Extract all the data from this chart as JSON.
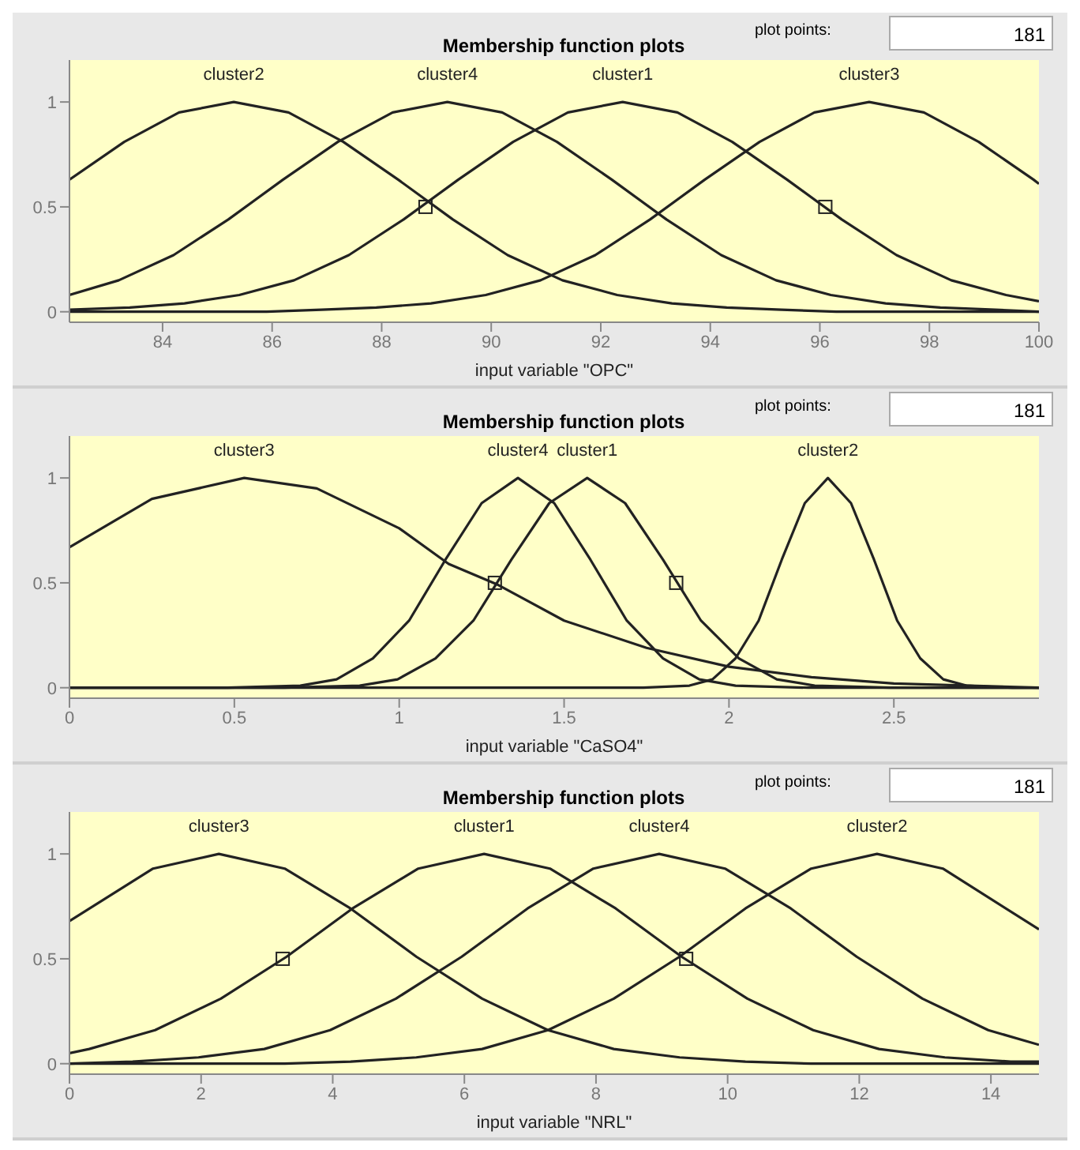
{
  "chart_data": [
    {
      "type": "line",
      "title": "Membership function plots",
      "xlabel": "input variable \"OPC\"",
      "annotations": [
        "plot points:",
        "181"
      ],
      "xlim": [
        82.3,
        100
      ],
      "xticks": [
        84,
        86,
        88,
        90,
        92,
        94,
        96,
        98,
        100
      ],
      "ylim": [
        -0.05,
        1.2
      ],
      "yticks": [
        0,
        0.5,
        1
      ],
      "marker": "none",
      "series": [
        {
          "name": "cluster2",
          "color": "#222222",
          "x": [
            82.3,
            83.3,
            84.3,
            85.3,
            86.3,
            87.3,
            88.3,
            89.3,
            90.3,
            91.3,
            92.3,
            93.3,
            94.3,
            95.3,
            96.3,
            97.3,
            98.3,
            99.3,
            100
          ],
          "values": [
            0.63,
            0.81,
            0.95,
            1,
            0.95,
            0.81,
            0.63,
            0.44,
            0.27,
            0.15,
            0.08,
            0.04,
            0.02,
            0.01,
            0,
            0,
            0,
            0,
            0
          ]
        },
        {
          "name": "cluster4",
          "color": "#222222",
          "x": [
            82.3,
            83.2,
            84.2,
            85.2,
            86.2,
            87.2,
            88.2,
            89.2,
            90.2,
            91.2,
            92.2,
            93.2,
            94.2,
            95.2,
            96.2,
            97.2,
            98.2,
            99.2,
            100
          ],
          "values": [
            0.08,
            0.15,
            0.27,
            0.44,
            0.63,
            0.81,
            0.95,
            1,
            0.95,
            0.81,
            0.63,
            0.44,
            0.27,
            0.15,
            0.08,
            0.04,
            0.02,
            0.01,
            0
          ]
        },
        {
          "name": "cluster1",
          "color": "#222222",
          "x": [
            82.3,
            83.4,
            84.4,
            85.4,
            86.4,
            87.4,
            88.4,
            89.4,
            90.4,
            91.4,
            92.4,
            93.4,
            94.4,
            95.4,
            96.4,
            97.4,
            98.4,
            99.4,
            100
          ],
          "values": [
            0.01,
            0.02,
            0.04,
            0.08,
            0.15,
            0.27,
            0.44,
            0.63,
            0.81,
            0.95,
            1,
            0.95,
            0.81,
            0.63,
            0.44,
            0.27,
            0.15,
            0.08,
            0.05
          ]
        },
        {
          "name": "cluster3",
          "color": "#222222",
          "x": [
            82.3,
            83.9,
            84.9,
            85.9,
            86.9,
            87.9,
            88.9,
            89.9,
            90.9,
            91.9,
            92.9,
            93.9,
            94.9,
            95.9,
            96.9,
            97.9,
            98.9,
            99.9,
            100
          ],
          "values": [
            0,
            0,
            0,
            0,
            0.01,
            0.02,
            0.04,
            0.08,
            0.15,
            0.27,
            0.44,
            0.63,
            0.81,
            0.95,
            1,
            0.95,
            0.81,
            0.63,
            0.61
          ]
        },
        {
          "type": "scatter",
          "marker": "square",
          "color": "#222222",
          "x": [
            88.8,
            96.1
          ],
          "values": [
            0.5,
            0.5
          ]
        }
      ]
    },
    {
      "type": "line",
      "title": "Membership function plots",
      "xlabel": "input variable \"CaSO4\"",
      "annotations": [
        "plot points:",
        "181"
      ],
      "xlim": [
        0,
        2.94
      ],
      "xticks": [
        0,
        0.5,
        1,
        1.5,
        2,
        2.5
      ],
      "ylim": [
        -0.05,
        1.2
      ],
      "yticks": [
        0,
        0.5,
        1
      ],
      "marker": "none",
      "series": [
        {
          "name": "cluster3",
          "color": "#222222",
          "x": [
            0,
            0.25,
            0.53,
            0.75,
            1,
            1.15,
            1.3,
            1.5,
            1.75,
            2,
            2.25,
            2.5,
            2.94
          ],
          "values": [
            0.67,
            0.9,
            1,
            0.95,
            0.76,
            0.59,
            0.49,
            0.32,
            0.19,
            0.1,
            0.05,
            0.02,
            0
          ]
        },
        {
          "name": "cluster4",
          "color": "#222222",
          "x": [
            0,
            0.48,
            0.7,
            0.81,
            0.92,
            1.03,
            1.14,
            1.25,
            1.36,
            1.47,
            1.58,
            1.69,
            1.8,
            1.91,
            2.02,
            2.24,
            2.94
          ],
          "values": [
            0,
            0,
            0.01,
            0.04,
            0.14,
            0.32,
            0.61,
            0.88,
            1,
            0.88,
            0.61,
            0.32,
            0.14,
            0.04,
            0.01,
            0,
            0
          ]
        },
        {
          "name": "cluster1",
          "color": "#222222",
          "x": [
            0,
            0.65,
            0.88,
            0.995,
            1.11,
            1.225,
            1.34,
            1.455,
            1.57,
            1.685,
            1.8,
            1.915,
            2.03,
            2.145,
            2.26,
            2.49,
            2.94
          ],
          "values": [
            0,
            0,
            0.01,
            0.04,
            0.14,
            0.32,
            0.61,
            0.88,
            1,
            0.88,
            0.61,
            0.32,
            0.14,
            0.04,
            0.01,
            0,
            0
          ]
        },
        {
          "name": "cluster2",
          "color": "#222222",
          "x": [
            0,
            1.74,
            1.88,
            1.95,
            2.02,
            2.09,
            2.16,
            2.23,
            2.3,
            2.37,
            2.44,
            2.51,
            2.58,
            2.65,
            2.72,
            2.86,
            2.94
          ],
          "values": [
            0,
            0,
            0.01,
            0.04,
            0.14,
            0.32,
            0.61,
            0.88,
            1,
            0.88,
            0.61,
            0.32,
            0.14,
            0.04,
            0.01,
            0,
            0
          ]
        },
        {
          "type": "scatter",
          "marker": "square",
          "color": "#222222",
          "x": [
            1.29,
            1.84
          ],
          "values": [
            0.5,
            0.5
          ]
        }
      ]
    },
    {
      "type": "line",
      "title": "Membership function plots",
      "xlabel": "input variable \"NRL\"",
      "annotations": [
        "plot points:",
        "181"
      ],
      "xlim": [
        0,
        14.73
      ],
      "xticks": [
        0,
        2,
        4,
        6,
        8,
        10,
        12,
        14
      ],
      "ylim": [
        -0.05,
        1.2
      ],
      "yticks": [
        0,
        0.5,
        1
      ],
      "marker": "none",
      "series": [
        {
          "name": "cluster3",
          "color": "#222222",
          "x": [
            0,
            1.27,
            2.27,
            3.27,
            4.27,
            5.27,
            6.27,
            7.27,
            8.27,
            9.27,
            10.27,
            11.27,
            12.27,
            14.73
          ],
          "values": [
            0.68,
            0.93,
            1,
            0.93,
            0.74,
            0.51,
            0.31,
            0.16,
            0.07,
            0.03,
            0.01,
            0,
            0,
            0
          ]
        },
        {
          "name": "cluster1",
          "color": "#222222",
          "x": [
            0,
            0.3,
            1.3,
            2.3,
            3.3,
            4.3,
            5.3,
            6.3,
            7.3,
            8.3,
            9.3,
            10.3,
            11.3,
            12.3,
            13.3,
            14.3,
            14.73
          ],
          "values": [
            0.05,
            0.07,
            0.16,
            0.31,
            0.51,
            0.74,
            0.93,
            1,
            0.93,
            0.74,
            0.51,
            0.31,
            0.16,
            0.07,
            0.03,
            0.01,
            0.01
          ]
        },
        {
          "name": "cluster4",
          "color": "#222222",
          "x": [
            0,
            0.96,
            1.96,
            2.96,
            3.96,
            4.96,
            5.96,
            6.96,
            7.96,
            8.96,
            9.96,
            10.96,
            11.96,
            12.96,
            13.96,
            14.73
          ],
          "values": [
            0,
            0.01,
            0.03,
            0.07,
            0.16,
            0.31,
            0.51,
            0.74,
            0.93,
            1,
            0.93,
            0.74,
            0.51,
            0.31,
            0.16,
            0.09
          ]
        },
        {
          "name": "cluster2",
          "color": "#222222",
          "x": [
            0,
            3.27,
            4.27,
            5.27,
            6.27,
            7.27,
            8.27,
            9.27,
            10.27,
            11.27,
            12.27,
            13.27,
            14.73
          ],
          "values": [
            0,
            0,
            0.01,
            0.03,
            0.07,
            0.16,
            0.31,
            0.51,
            0.74,
            0.93,
            1,
            0.93,
            0.64
          ]
        },
        {
          "type": "scatter",
          "marker": "square",
          "color": "#222222",
          "x": [
            3.24,
            9.37
          ],
          "values": [
            0.5,
            0.5
          ]
        }
      ]
    }
  ]
}
